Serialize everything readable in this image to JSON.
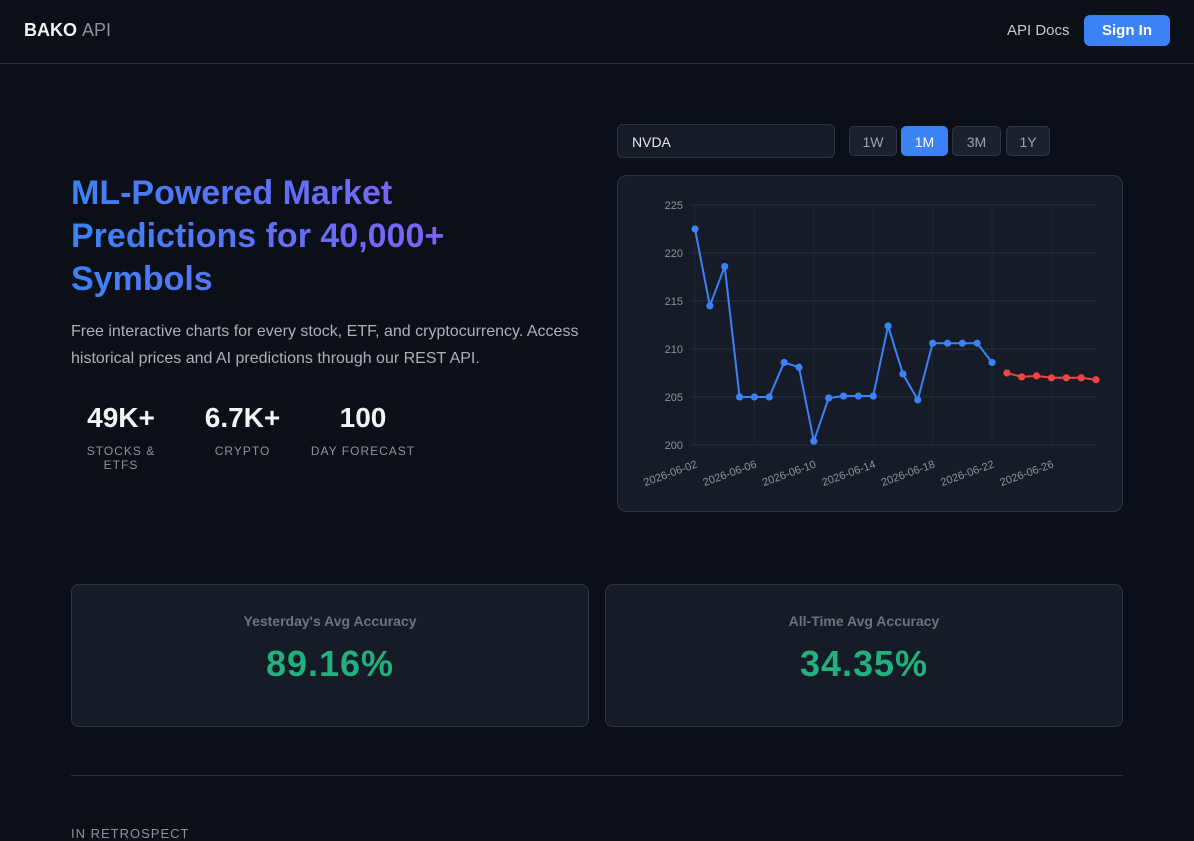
{
  "header": {
    "brand": "BAKO",
    "brand_suffix": "API",
    "nav": [
      "API Docs"
    ],
    "cta": "Sign In"
  },
  "controls": {
    "symbol": "NVDA",
    "ranges": [
      "1W",
      "1M",
      "3M",
      "1Y"
    ],
    "active_range": "1M"
  },
  "hero": {
    "title": "ML-Powered Market Predictions for 40,000+ Symbols",
    "description": "Free interactive charts for every stock, ETF, and cryptocurrency. Access historical prices and AI predictions through our REST API.",
    "stats": [
      {
        "value": "49K+",
        "label": "STOCKS & ETFS"
      },
      {
        "value": "6.7K+",
        "label": "CRYPTO"
      },
      {
        "value": "100",
        "label": "DAY FORECAST"
      }
    ]
  },
  "chart_data": {
    "type": "line",
    "categories": [
      "2026-06-02",
      null,
      null,
      null,
      "2026-06-06",
      null,
      null,
      null,
      "2026-06-10",
      null,
      null,
      null,
      "2026-06-14",
      null,
      null,
      null,
      "2026-06-18",
      null,
      null,
      null,
      "2026-06-22",
      null,
      null,
      null,
      "2026-06-26",
      null,
      null,
      null
    ],
    "series": [
      {
        "color": "#3b82f6",
        "values": [
          222.5,
          214.5,
          218.6,
          205.0,
          205.0,
          205.0,
          208.6,
          208.1,
          200.4,
          204.9,
          205.1,
          205.1,
          205.1,
          212.4,
          207.4,
          204.7,
          210.6,
          210.6,
          210.6,
          210.6,
          208.6,
          null,
          null,
          null,
          null,
          null,
          null,
          null
        ]
      },
      {
        "color": "#ef4444",
        "values": [
          null,
          null,
          null,
          null,
          null,
          null,
          null,
          null,
          null,
          null,
          null,
          null,
          null,
          null,
          null,
          null,
          null,
          null,
          null,
          null,
          null,
          207.5,
          207.1,
          207.2,
          207.0,
          207.0,
          207.0,
          206.8
        ]
      }
    ],
    "ylim": [
      200,
      225
    ],
    "yticks": [
      200,
      205,
      210,
      215,
      220,
      225
    ],
    "grid": true
  },
  "accuracy": [
    {
      "label": "Yesterday's Avg Accuracy",
      "value": "89.16%"
    },
    {
      "label": "All-Time Avg Accuracy",
      "value": "34.35%"
    }
  ],
  "section_heading": "IN RETROSPECT"
}
